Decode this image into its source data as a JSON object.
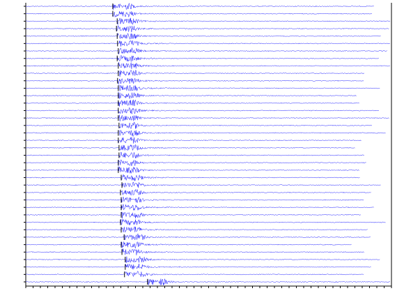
{
  "chart_data": {
    "type": "record-section",
    "color": "#1414ff",
    "xlim": [
      0,
      100
    ],
    "xticks": [
      0,
      2,
      4,
      6,
      8,
      10,
      12,
      14,
      16,
      18,
      20,
      22,
      24,
      26,
      28,
      30,
      32,
      34,
      36,
      38,
      40,
      42,
      44,
      46,
      48,
      50,
      52,
      54,
      56,
      58,
      60,
      62,
      64,
      66,
      68,
      70,
      72,
      74,
      76,
      78,
      80,
      82,
      84,
      86,
      88,
      90,
      92,
      94,
      96,
      98,
      100
    ],
    "traces": [
      {
        "onset": 23.8,
        "end": 95.2
      },
      {
        "onset": 23.8,
        "end": 94.7
      },
      {
        "onset": 25,
        "end": 99.6
      },
      {
        "onset": 24.8,
        "end": 99.4
      },
      {
        "onset": 25,
        "end": 97.1
      },
      {
        "onset": 25.1,
        "end": 99.6
      },
      {
        "onset": 25.3,
        "end": 98.8
      },
      {
        "onset": 25,
        "end": 96.6
      },
      {
        "onset": 25.3,
        "end": 99.6
      },
      {
        "onset": 25.3,
        "end": 92.6
      },
      {
        "onset": 25.1,
        "end": 92.4
      },
      {
        "onset": 25.3,
        "end": 96.9
      },
      {
        "onset": 25.3,
        "end": 90.5
      },
      {
        "onset": 25.3,
        "end": 91.2
      },
      {
        "onset": 25.3,
        "end": 96.6
      },
      {
        "onset": 25.3,
        "end": 99.4
      },
      {
        "onset": 25.5,
        "end": 94.7
      },
      {
        "onset": 25.3,
        "end": 98.5
      },
      {
        "onset": 25.3,
        "end": 91.8
      },
      {
        "onset": 25.5,
        "end": 90.1
      },
      {
        "onset": 25.5,
        "end": 92.6
      },
      {
        "onset": 25.3,
        "end": 93.1
      },
      {
        "onset": 25.3,
        "end": 91.2
      },
      {
        "onset": 26.1,
        "end": 91.4
      },
      {
        "onset": 26.3,
        "end": 97.1
      },
      {
        "onset": 25.9,
        "end": 94.5
      },
      {
        "onset": 26.1,
        "end": 92.4
      },
      {
        "onset": 26.1,
        "end": 95.2
      },
      {
        "onset": 26.1,
        "end": 91.6
      },
      {
        "onset": 25.9,
        "end": 98.5
      },
      {
        "onset": 26.1,
        "end": 93.5
      },
      {
        "onset": 26.9,
        "end": 94.3
      },
      {
        "onset": 26.1,
        "end": 89.1
      },
      {
        "onset": 26.3,
        "end": 92.6
      },
      {
        "onset": 27.2,
        "end": 96.9
      },
      {
        "onset": 27.2,
        "end": 94.5
      },
      {
        "onset": 27,
        "end": 92.4
      },
      {
        "onset": 33.3,
        "end": 99.6
      }
    ]
  }
}
